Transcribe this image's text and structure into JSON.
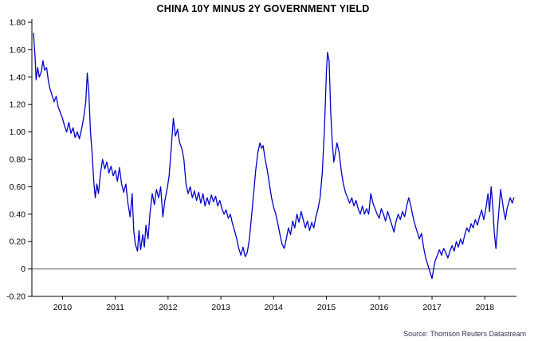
{
  "page": {
    "title": "CHINA 10Y MINUS 2Y GOVERNMENT YIELD",
    "source": "Source: Thomson Reuters Datastream"
  },
  "chart_data": {
    "type": "line",
    "title": "CHINA 10Y MINUS 2Y GOVERNMENT YIELD",
    "source": "Source: Thomson Reuters Datastream",
    "xlabel": "",
    "ylabel": "",
    "xlim": [
      2009.42,
      2018.6
    ],
    "ylim": [
      -0.2,
      1.8
    ],
    "grid": false,
    "zero_line": 0,
    "line_color": "#0000cd",
    "axis_color": "#000000",
    "zero_line_color": "#555555",
    "y_ticks": [
      {
        "v": 1.8,
        "label": "1.80"
      },
      {
        "v": 1.6,
        "label": "1.60"
      },
      {
        "v": 1.4,
        "label": "1.40"
      },
      {
        "v": 1.2,
        "label": "1.20"
      },
      {
        "v": 1.0,
        "label": "1.00"
      },
      {
        "v": 0.8,
        "label": "0.80"
      },
      {
        "v": 0.6,
        "label": "0.60"
      },
      {
        "v": 0.4,
        "label": "0.40"
      },
      {
        "v": 0.2,
        "label": "0.20"
      },
      {
        "v": 0.0,
        "label": "0"
      },
      {
        "v": -0.2,
        "label": "-0.20"
      }
    ],
    "x_ticks": [
      {
        "v": 2010,
        "label": "2010"
      },
      {
        "v": 2011,
        "label": "2011"
      },
      {
        "v": 2012,
        "label": "2012"
      },
      {
        "v": 2013,
        "label": "2013"
      },
      {
        "v": 2014,
        "label": "2014"
      },
      {
        "v": 2015,
        "label": "2015"
      },
      {
        "v": 2016,
        "label": "2016"
      },
      {
        "v": 2017,
        "label": "2017"
      },
      {
        "v": 2018,
        "label": "2018"
      }
    ],
    "series": [
      {
        "name": "China 10Y minus 2Y government yield spread",
        "color": "#0000cd",
        "x": [
          2009.45,
          2009.48,
          2009.5,
          2009.53,
          2009.56,
          2009.6,
          2009.63,
          2009.66,
          2009.7,
          2009.73,
          2009.76,
          2009.8,
          2009.84,
          2009.88,
          2009.92,
          2009.96,
          2010.0,
          2010.04,
          2010.08,
          2010.12,
          2010.16,
          2010.2,
          2010.24,
          2010.28,
          2010.32,
          2010.36,
          2010.4,
          2010.44,
          2010.47,
          2010.5,
          2010.53,
          2010.56,
          2010.59,
          2010.62,
          2010.65,
          2010.68,
          2010.72,
          2010.76,
          2010.8,
          2010.84,
          2010.88,
          2010.92,
          2010.96,
          2011.0,
          2011.04,
          2011.08,
          2011.12,
          2011.16,
          2011.2,
          2011.24,
          2011.28,
          2011.32,
          2011.35,
          2011.38,
          2011.42,
          2011.45,
          2011.48,
          2011.52,
          2011.55,
          2011.58,
          2011.62,
          2011.66,
          2011.7,
          2011.74,
          2011.78,
          2011.82,
          2011.86,
          2011.9,
          2011.94,
          2011.98,
          2012.02,
          2012.06,
          2012.1,
          2012.14,
          2012.18,
          2012.22,
          2012.26,
          2012.3,
          2012.34,
          2012.38,
          2012.42,
          2012.46,
          2012.5,
          2012.54,
          2012.58,
          2012.62,
          2012.66,
          2012.7,
          2012.74,
          2012.78,
          2012.82,
          2012.86,
          2012.9,
          2012.94,
          2012.98,
          2013.02,
          2013.06,
          2013.1,
          2013.14,
          2013.18,
          2013.22,
          2013.26,
          2013.3,
          2013.34,
          2013.38,
          2013.42,
          2013.46,
          2013.5,
          2013.54,
          2013.58,
          2013.62,
          2013.66,
          2013.7,
          2013.74,
          2013.77,
          2013.8,
          2013.84,
          2013.88,
          2013.92,
          2013.96,
          2014.0,
          2014.04,
          2014.08,
          2014.12,
          2014.16,
          2014.2,
          2014.24,
          2014.28,
          2014.32,
          2014.36,
          2014.4,
          2014.44,
          2014.48,
          2014.52,
          2014.56,
          2014.6,
          2014.64,
          2014.68,
          2014.72,
          2014.76,
          2014.8,
          2014.84,
          2014.88,
          2014.92,
          2014.96,
          2015.0,
          2015.02,
          2015.05,
          2015.08,
          2015.11,
          2015.14,
          2015.17,
          2015.2,
          2015.24,
          2015.28,
          2015.32,
          2015.36,
          2015.4,
          2015.44,
          2015.48,
          2015.52,
          2015.56,
          2015.6,
          2015.64,
          2015.68,
          2015.72,
          2015.76,
          2015.8,
          2015.84,
          2015.88,
          2015.92,
          2015.96,
          2016.0,
          2016.04,
          2016.08,
          2016.12,
          2016.16,
          2016.2,
          2016.24,
          2016.28,
          2016.32,
          2016.36,
          2016.4,
          2016.44,
          2016.48,
          2016.52,
          2016.56,
          2016.6,
          2016.64,
          2016.68,
          2016.72,
          2016.76,
          2016.8,
          2016.84,
          2016.88,
          2016.92,
          2016.96,
          2017.0,
          2017.03,
          2017.06,
          2017.1,
          2017.14,
          2017.18,
          2017.22,
          2017.26,
          2017.3,
          2017.34,
          2017.38,
          2017.42,
          2017.46,
          2017.5,
          2017.54,
          2017.58,
          2017.62,
          2017.66,
          2017.7,
          2017.74,
          2017.78,
          2017.82,
          2017.86,
          2017.9,
          2017.94,
          2017.98,
          2018.02,
          2018.06,
          2018.09,
          2018.12,
          2018.15,
          2018.18,
          2018.21,
          2018.24,
          2018.27,
          2018.3,
          2018.33,
          2018.36,
          2018.39,
          2018.42,
          2018.45,
          2018.48,
          2018.52,
          2018.55
        ],
        "y": [
          1.72,
          1.55,
          1.38,
          1.47,
          1.4,
          1.44,
          1.52,
          1.45,
          1.47,
          1.38,
          1.32,
          1.27,
          1.22,
          1.26,
          1.18,
          1.14,
          1.1,
          1.04,
          1.0,
          1.07,
          0.99,
          1.03,
          0.96,
          1.0,
          0.95,
          1.02,
          1.1,
          1.22,
          1.43,
          1.28,
          1.0,
          0.85,
          0.65,
          0.52,
          0.62,
          0.55,
          0.7,
          0.8,
          0.73,
          0.78,
          0.7,
          0.75,
          0.68,
          0.72,
          0.64,
          0.74,
          0.62,
          0.56,
          0.62,
          0.48,
          0.38,
          0.55,
          0.28,
          0.18,
          0.13,
          0.28,
          0.14,
          0.25,
          0.16,
          0.32,
          0.22,
          0.42,
          0.55,
          0.47,
          0.58,
          0.52,
          0.6,
          0.38,
          0.5,
          0.58,
          0.68,
          0.88,
          1.1,
          0.97,
          1.02,
          0.92,
          0.88,
          0.8,
          0.62,
          0.55,
          0.6,
          0.52,
          0.57,
          0.5,
          0.56,
          0.48,
          0.55,
          0.46,
          0.52,
          0.47,
          0.54,
          0.49,
          0.53,
          0.46,
          0.5,
          0.44,
          0.4,
          0.43,
          0.37,
          0.4,
          0.33,
          0.28,
          0.22,
          0.15,
          0.1,
          0.16,
          0.09,
          0.12,
          0.22,
          0.38,
          0.55,
          0.72,
          0.85,
          0.92,
          0.88,
          0.9,
          0.8,
          0.72,
          0.62,
          0.52,
          0.45,
          0.4,
          0.33,
          0.25,
          0.18,
          0.15,
          0.22,
          0.3,
          0.25,
          0.35,
          0.3,
          0.4,
          0.34,
          0.42,
          0.36,
          0.3,
          0.35,
          0.28,
          0.34,
          0.3,
          0.38,
          0.44,
          0.52,
          0.7,
          1.0,
          1.45,
          1.58,
          1.52,
          1.15,
          0.92,
          0.78,
          0.85,
          0.92,
          0.85,
          0.72,
          0.62,
          0.56,
          0.52,
          0.48,
          0.52,
          0.46,
          0.5,
          0.44,
          0.4,
          0.46,
          0.4,
          0.44,
          0.4,
          0.55,
          0.48,
          0.44,
          0.4,
          0.37,
          0.44,
          0.4,
          0.35,
          0.42,
          0.37,
          0.32,
          0.27,
          0.35,
          0.4,
          0.36,
          0.42,
          0.38,
          0.46,
          0.52,
          0.46,
          0.38,
          0.32,
          0.27,
          0.22,
          0.26,
          0.16,
          0.08,
          0.03,
          -0.02,
          -0.07,
          0.0,
          0.06,
          0.1,
          0.14,
          0.1,
          0.15,
          0.12,
          0.08,
          0.13,
          0.17,
          0.13,
          0.2,
          0.16,
          0.22,
          0.18,
          0.25,
          0.3,
          0.27,
          0.33,
          0.3,
          0.36,
          0.32,
          0.38,
          0.43,
          0.36,
          0.44,
          0.55,
          0.42,
          0.6,
          0.46,
          0.26,
          0.15,
          0.3,
          0.44,
          0.58,
          0.5,
          0.42,
          0.36,
          0.44,
          0.48,
          0.52,
          0.48,
          0.52
        ]
      }
    ]
  }
}
